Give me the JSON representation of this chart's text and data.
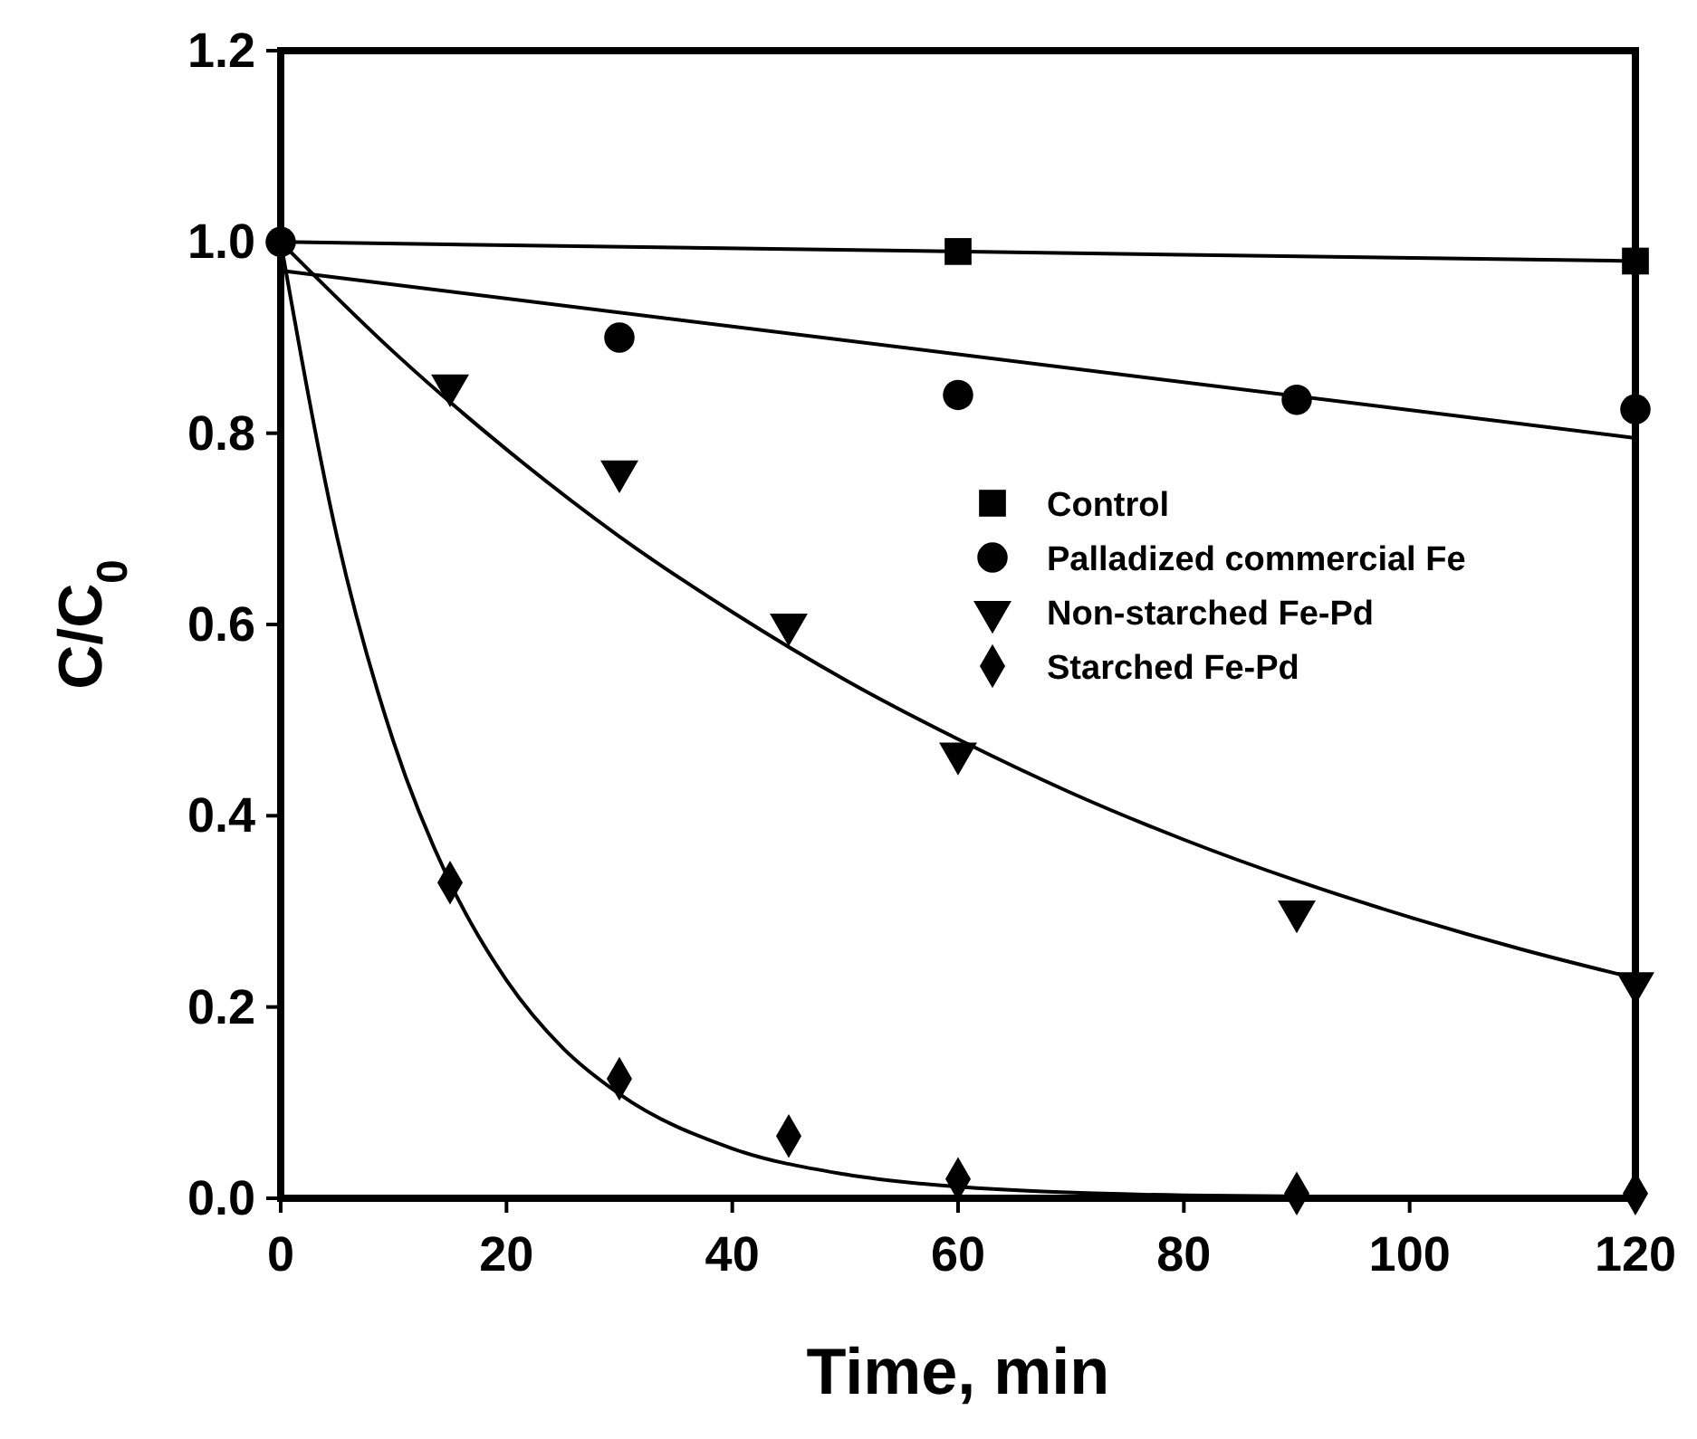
{
  "chart_data": {
    "type": "scatter",
    "xlabel": "Time, min",
    "ylabel": "C/C$_{0}$",
    "xlim": [
      0,
      120
    ],
    "xticks": [
      0,
      20,
      40,
      60,
      80,
      100,
      120
    ],
    "ylim": [
      0,
      1.2
    ],
    "yticks": [
      {
        "value": 0,
        "label": "0.0"
      },
      {
        "value": 0.2,
        "label": "0.2"
      },
      {
        "value": 0.4,
        "label": "0.4"
      },
      {
        "value": 0.6,
        "label": "0.6"
      },
      {
        "value": 0.8,
        "label": "0.8"
      },
      {
        "value": 1,
        "label": "1.0"
      },
      {
        "value": 1.2,
        "label": "1.2"
      }
    ],
    "grid": false,
    "legend": "right",
    "series": [
      {
        "name": "Control",
        "color": "#000000",
        "marker": "square",
        "x": [
          60,
          120
        ],
        "values": [
          0.99,
          0.98
        ]
      },
      {
        "name": "Palladized commercial Fe",
        "color": "#000000",
        "marker": "circle",
        "x": [
          0,
          30,
          60,
          90,
          120
        ],
        "values": [
          1.0,
          0.9,
          0.84,
          0.835,
          0.825
        ]
      },
      {
        "name": "Non-starched Fe-Pd",
        "color": "#000000",
        "marker": "triangle",
        "x": [
          15,
          30,
          45,
          60,
          90,
          120
        ],
        "values": [
          0.85,
          0.76,
          0.6,
          0.465,
          0.3,
          0.225
        ]
      },
      {
        "name": "Starched Fe-Pd",
        "color": "#000000",
        "marker": "diamond",
        "x": [
          15,
          30,
          45,
          60,
          90,
          120
        ],
        "values": [
          0.33,
          0.125,
          0.065,
          0.02,
          0.005,
          0.005
        ]
      },
      {
        "type": "line",
        "color": "#000000",
        "marker": "none",
        "x": [
          0,
          120
        ],
        "values": [
          1.0,
          0.98
        ]
      },
      {
        "type": "line",
        "color": "#000000",
        "marker": "none",
        "x": [
          0,
          120
        ],
        "values": [
          0.97,
          0.795
        ]
      },
      {
        "type": "line",
        "color": "#000000",
        "marker": "none",
        "x": [
          0,
          10,
          20,
          30,
          40,
          50,
          60,
          70,
          80,
          90,
          100,
          110,
          120
        ],
        "values": [
          1,
          0.885,
          0.783,
          0.692,
          0.613,
          0.542,
          0.48,
          0.424,
          0.375,
          0.332,
          0.294,
          0.26,
          0.23
        ]
      },
      {
        "type": "line",
        "color": "#000000",
        "marker": "none",
        "x": [
          0,
          5,
          10,
          15,
          20,
          25,
          30,
          40,
          50,
          60,
          80,
          100,
          120
        ],
        "values": [
          1,
          0.691,
          0.477,
          0.33,
          0.228,
          0.157,
          0.109,
          0.052,
          0.025,
          0.012,
          0.003,
          0.001,
          0
        ]
      }
    ]
  }
}
